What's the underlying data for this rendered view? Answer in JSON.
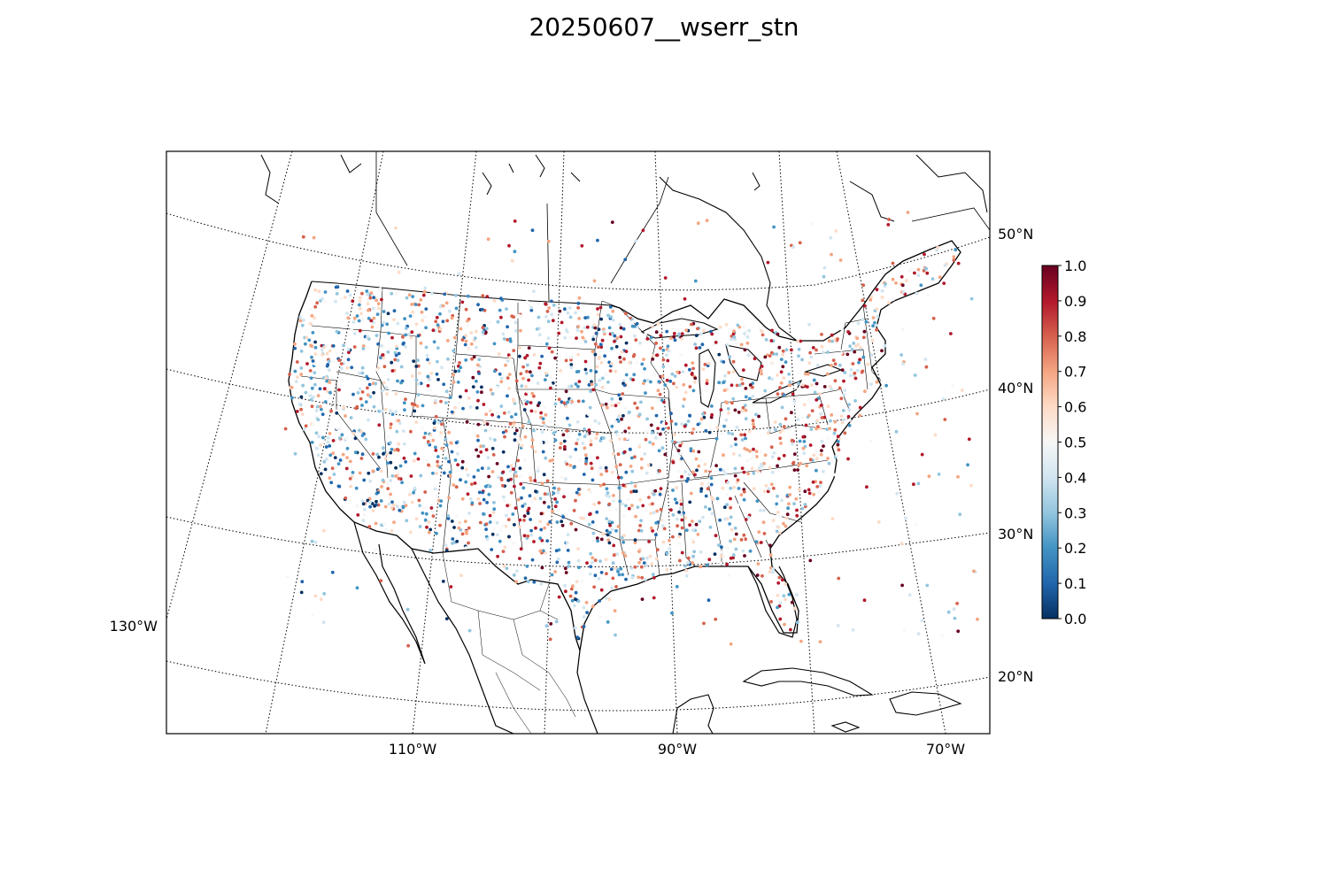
{
  "title": "20250607__wserr_stn",
  "map": {
    "projection": "lambert-conformal",
    "parallels": [
      {
        "label": "20°N"
      },
      {
        "label": "30°N"
      },
      {
        "label": "40°N"
      },
      {
        "label": "50°N"
      }
    ],
    "meridians": [
      {
        "label": "130°W"
      },
      {
        "label": "110°W"
      },
      {
        "label": "90°W"
      },
      {
        "label": "70°W"
      }
    ],
    "gridline_style": "dotted",
    "coastline_color": "#000000"
  },
  "colorbar": {
    "colormap": "RdBu_r",
    "vmin": 0.0,
    "vmax": 1.0,
    "ticks": [
      "0.0",
      "0.1",
      "0.2",
      "0.3",
      "0.4",
      "0.5",
      "0.6",
      "0.7",
      "0.8",
      "0.9",
      "1.0"
    ],
    "colors": {
      "0.0": "#053061",
      "0.1": "#2166ac",
      "0.2": "#4393c3",
      "0.3": "#92c5de",
      "0.4": "#d1e5f0",
      "0.5": "#f7f7f7",
      "0.6": "#fddbc7",
      "0.7": "#f4a582",
      "0.8": "#d6604d",
      "0.9": "#b2182b",
      "1.0": "#67001f"
    }
  }
}
